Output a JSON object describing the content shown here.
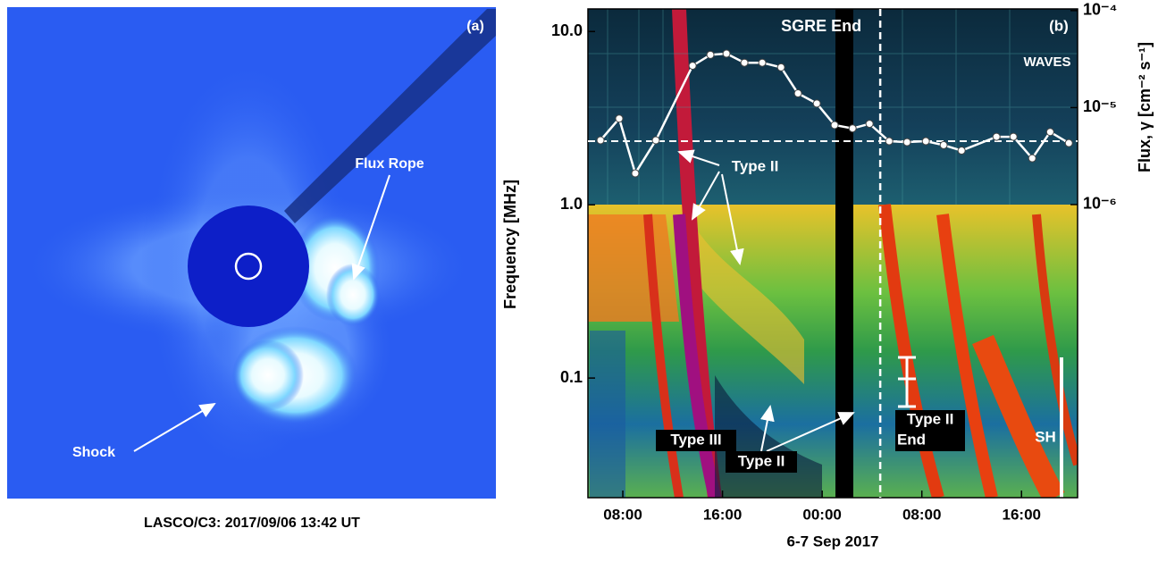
{
  "panel_a": {
    "label": "(a)",
    "flux_rope": "Flux Rope",
    "shock": "Shock",
    "caption": "LASCO/C3: 2017/09/06 13:42 UT"
  },
  "chart_data": {
    "type": "line",
    "label": "(b)",
    "instrument": "WAVES",
    "xlabel": "6-7 Sep 2017",
    "ylabel": "Frequency [MHz]",
    "y2label": "Flux, γ [cm⁻² s⁻¹]",
    "xlim": [
      5.2,
      44.5
    ],
    "xticks": [
      {
        "value": 8,
        "label": "08:00"
      },
      {
        "value": 16,
        "label": "16:00"
      },
      {
        "value": 24,
        "label": "00:00"
      },
      {
        "value": 32,
        "label": "08:00"
      },
      {
        "value": 40,
        "label": "16:00"
      }
    ],
    "ylim": [
      0.0204,
      13.5
    ],
    "yticks": [
      {
        "value": 0.1,
        "label": "0.1"
      },
      {
        "value": 1,
        "label": "1.0"
      },
      {
        "value": 10,
        "label": "10.0"
      }
    ],
    "log_y": true,
    "y2lim": [
      9.5e-10,
      0.000104
    ],
    "y2ticks": [
      {
        "value": 1e-06,
        "label": "10⁻⁶"
      },
      {
        "value": 1e-05,
        "label": "10⁻⁵"
      },
      {
        "value": 0.0001,
        "label": "10⁻⁴"
      }
    ],
    "log_y2": true,
    "x": [
      6.21,
      7.71,
      9.0,
      10.65,
      13.6,
      15.03,
      16.32,
      17.76,
      19.19,
      20.7,
      22.06,
      23.57,
      25.0,
      26.44,
      27.8,
      29.38,
      30.81,
      32.32,
      33.75,
      35.19,
      37.99,
      39.35,
      40.86,
      42.3,
      43.8
    ],
    "series": [
      {
        "color": "#ffffff",
        "axis": "y2",
        "values": [
          4.6e-06,
          7.7e-06,
          2.1e-06,
          4.6e-06,
          2.7e-05,
          3.5e-05,
          3.6e-05,
          2.9e-05,
          2.9e-05,
          2.6e-05,
          1.4e-05,
          1.1e-05,
          6.6e-06,
          6.1e-06,
          6.8e-06,
          4.5e-06,
          4.4e-06,
          4.5e-06,
          4.1e-06,
          3.6e-06,
          5e-06,
          5e-06,
          3e-06,
          5.6e-06,
          4.3e-06
        ]
      }
    ],
    "background_flux": 4.5e-06,
    "sgre_end": {
      "label": "SGRE End",
      "x": 28.66
    },
    "annotations": [
      "Type II",
      "Type III",
      "Type II",
      "Type II",
      "End",
      "SH"
    ]
  }
}
